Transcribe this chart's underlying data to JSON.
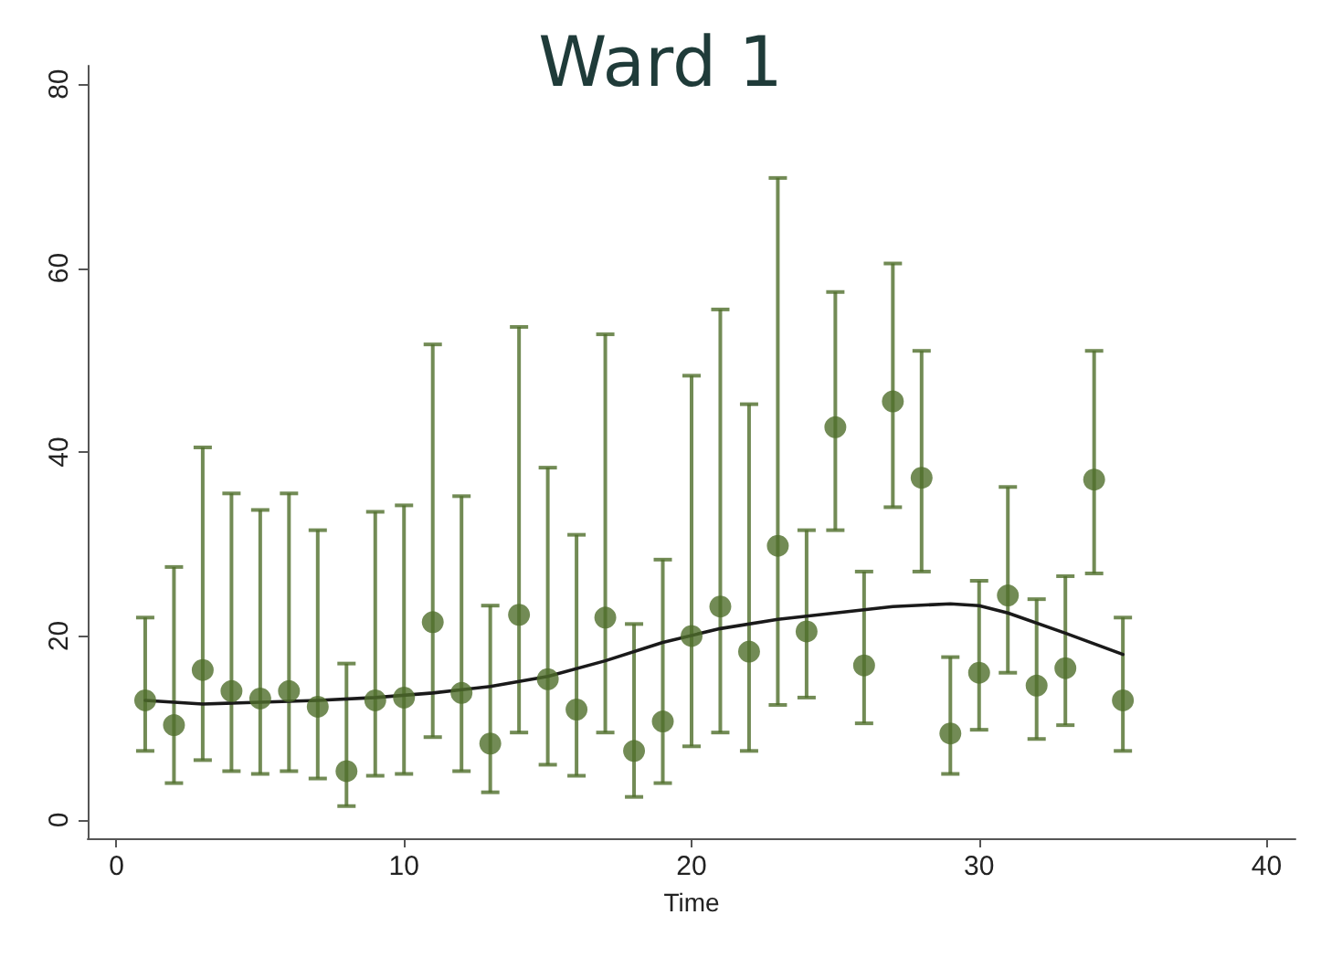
{
  "chart_data": {
    "type": "scatter",
    "title": "Ward 1",
    "xlabel": "Time",
    "xlim": [
      -1,
      41
    ],
    "xticks": [
      0,
      10,
      20,
      30,
      40
    ],
    "ylim": [
      -2,
      82
    ],
    "yticks": [
      0,
      20,
      40,
      60,
      80
    ],
    "grid": false,
    "marker": "circle",
    "series": [
      {
        "color": "#4f6e2b",
        "x": [
          1,
          2,
          3,
          4,
          5,
          6,
          7,
          8,
          9,
          10,
          11,
          12,
          13,
          14,
          15,
          16,
          17,
          18,
          19,
          20,
          21,
          22,
          23,
          24,
          25,
          26,
          27,
          28,
          29,
          30,
          31,
          32,
          33,
          34,
          35
        ],
        "values": [
          13,
          10.3,
          16.3,
          14,
          13.2,
          14,
          12.3,
          5.3,
          13,
          13.3,
          21.5,
          13.8,
          8.3,
          22.3,
          15.3,
          12,
          22,
          7.5,
          10.7,
          20,
          23.2,
          18.3,
          29.8,
          20.5,
          42.7,
          16.8,
          45.5,
          37.2,
          9.4,
          16,
          24.4,
          14.6,
          16.5,
          37,
          13
        ],
        "errors": [
          [
            7.5,
            22
          ],
          [
            4,
            27.5
          ],
          [
            6.5,
            40.5
          ],
          [
            5.3,
            35.5
          ],
          [
            5,
            33.7
          ],
          [
            5.3,
            35.5
          ],
          [
            4.5,
            31.5
          ],
          [
            1.5,
            17
          ],
          [
            4.8,
            33.5
          ],
          [
            5,
            34.2
          ],
          [
            9,
            51.7
          ],
          [
            5.3,
            35.2
          ],
          [
            3,
            23.3
          ],
          [
            9.5,
            53.6
          ],
          [
            6,
            38.3
          ],
          [
            4.8,
            31
          ],
          [
            9.5,
            52.8
          ],
          [
            2.5,
            21.3
          ],
          [
            4,
            28.3
          ],
          [
            8,
            48.3
          ],
          [
            9.5,
            55.5
          ],
          [
            7.5,
            45.2
          ],
          [
            12.5,
            69.8
          ],
          [
            13.3,
            31.5
          ],
          [
            31.5,
            57.4
          ],
          [
            10.5,
            27
          ],
          [
            34,
            60.5
          ],
          [
            27,
            51
          ],
          [
            5,
            17.7
          ],
          [
            9.8,
            26
          ],
          [
            16,
            36.2
          ],
          [
            8.8,
            24
          ],
          [
            10.3,
            26.5
          ],
          [
            26.8,
            51
          ],
          [
            7.5,
            22
          ]
        ]
      },
      {
        "type": "line",
        "color": "#1a1a1a",
        "marker": "none",
        "line_style": "solid",
        "x": [
          1,
          3,
          5,
          7,
          9,
          11,
          13,
          15,
          17,
          19,
          21,
          23,
          25,
          27,
          29,
          30,
          31,
          33,
          35
        ],
        "values": [
          13,
          12.6,
          12.8,
          13,
          13.3,
          13.8,
          14.5,
          15.6,
          17.3,
          19.3,
          20.8,
          21.8,
          22.5,
          23.2,
          23.5,
          23.3,
          22.5,
          20.3,
          18
        ]
      }
    ]
  }
}
